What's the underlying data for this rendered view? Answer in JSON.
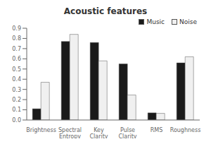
{
  "chart_data": {
    "type": "bar",
    "title": "Acoustic features",
    "categories": [
      "Brightness",
      "Spectral\nEntropy",
      "Key Clarity",
      "Pulse Clarity",
      "RMS",
      "Roughness"
    ],
    "series": [
      {
        "name": "Music",
        "color": "#1a1a1a",
        "values": [
          0.11,
          0.77,
          0.76,
          0.55,
          0.07,
          0.56
        ]
      },
      {
        "name": "Noise",
        "color": "#f0f0f0",
        "values": [
          0.37,
          0.84,
          0.58,
          0.245,
          0.065,
          0.62
        ]
      }
    ],
    "ylim": [
      0,
      0.9
    ],
    "yticks": [
      {
        "value": 0,
        "label": "0.0"
      },
      0.1,
      0.2,
      0.3,
      0.4,
      0.5,
      0.6,
      0.7,
      0.8,
      0.9
    ],
    "legend": "upper right"
  }
}
